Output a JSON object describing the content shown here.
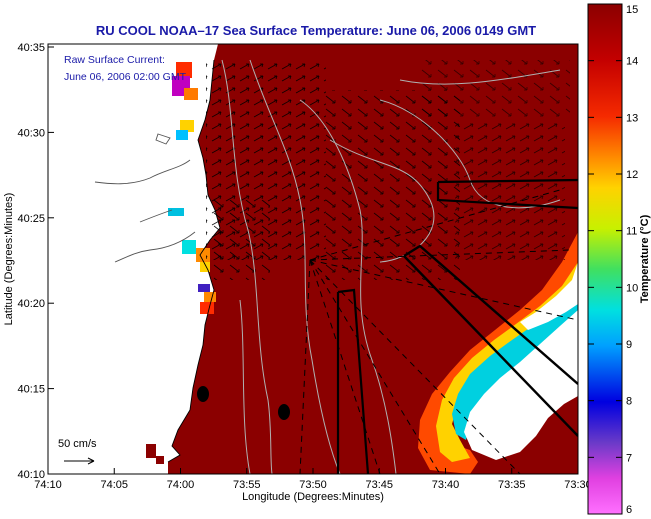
{
  "title": "RU COOL  NOAA–17  Sea Surface Temperature:  June 06, 2006 0149 GMT",
  "inset": {
    "line1": "Raw Surface Current:",
    "line2": "June 06, 2006 02:00 GMT"
  },
  "scale_label": "50 cm/s",
  "xlabel": "Longitude (Degrees:Minutes)",
  "ylabel": "Latitude (Degrees:Minutes)",
  "x_ticks": [
    "74:10",
    "74:05",
    "74:00",
    "73:55",
    "73:50",
    "73:45",
    "73:40",
    "73:35",
    "73:30"
  ],
  "y_ticks": [
    "40:35",
    "40:30",
    "40:25",
    "40:20",
    "40:15",
    "40:10"
  ],
  "colorbar": {
    "label": "Temperature (°C)",
    "ticks": [
      "15",
      "14",
      "13",
      "12",
      "11",
      "10",
      "9",
      "8",
      "7",
      "6"
    ],
    "range": [
      6,
      15
    ]
  },
  "colors": {
    "ocean": "#8b0000",
    "land": "#ffffff",
    "title_text": "#1a1aa8"
  }
}
